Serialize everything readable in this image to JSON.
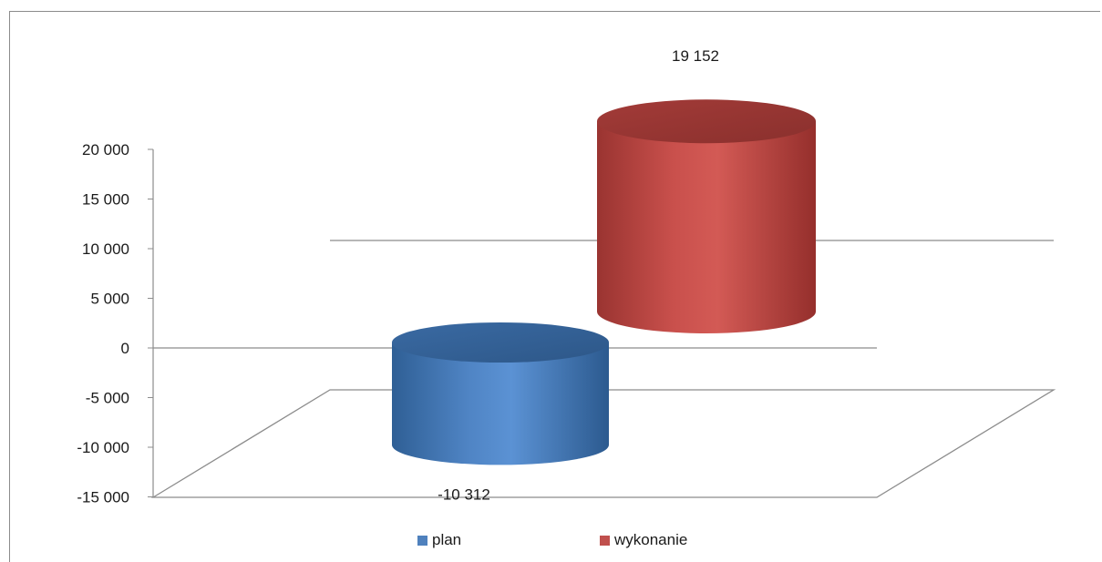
{
  "chart_data": {
    "type": "bar",
    "style": "3d-cylinder",
    "categories": [
      "plan",
      "wykonanie"
    ],
    "values": [
      -10312,
      19152
    ],
    "value_labels": [
      "-10 312",
      "19 152"
    ],
    "colors": [
      "#4f81bd",
      "#c0504d"
    ],
    "yticks": [
      20000,
      15000,
      10000,
      5000,
      0,
      -5000,
      -10000,
      -15000
    ],
    "ytick_labels": [
      "20 000",
      "15 000",
      "10 000",
      "5 000",
      "0",
      "-5 000",
      "-10 000",
      "-15 000"
    ],
    "ylim": [
      -15000,
      20000
    ],
    "legend_position": "bottom",
    "legend": [
      "plan",
      "wykonanie"
    ]
  }
}
